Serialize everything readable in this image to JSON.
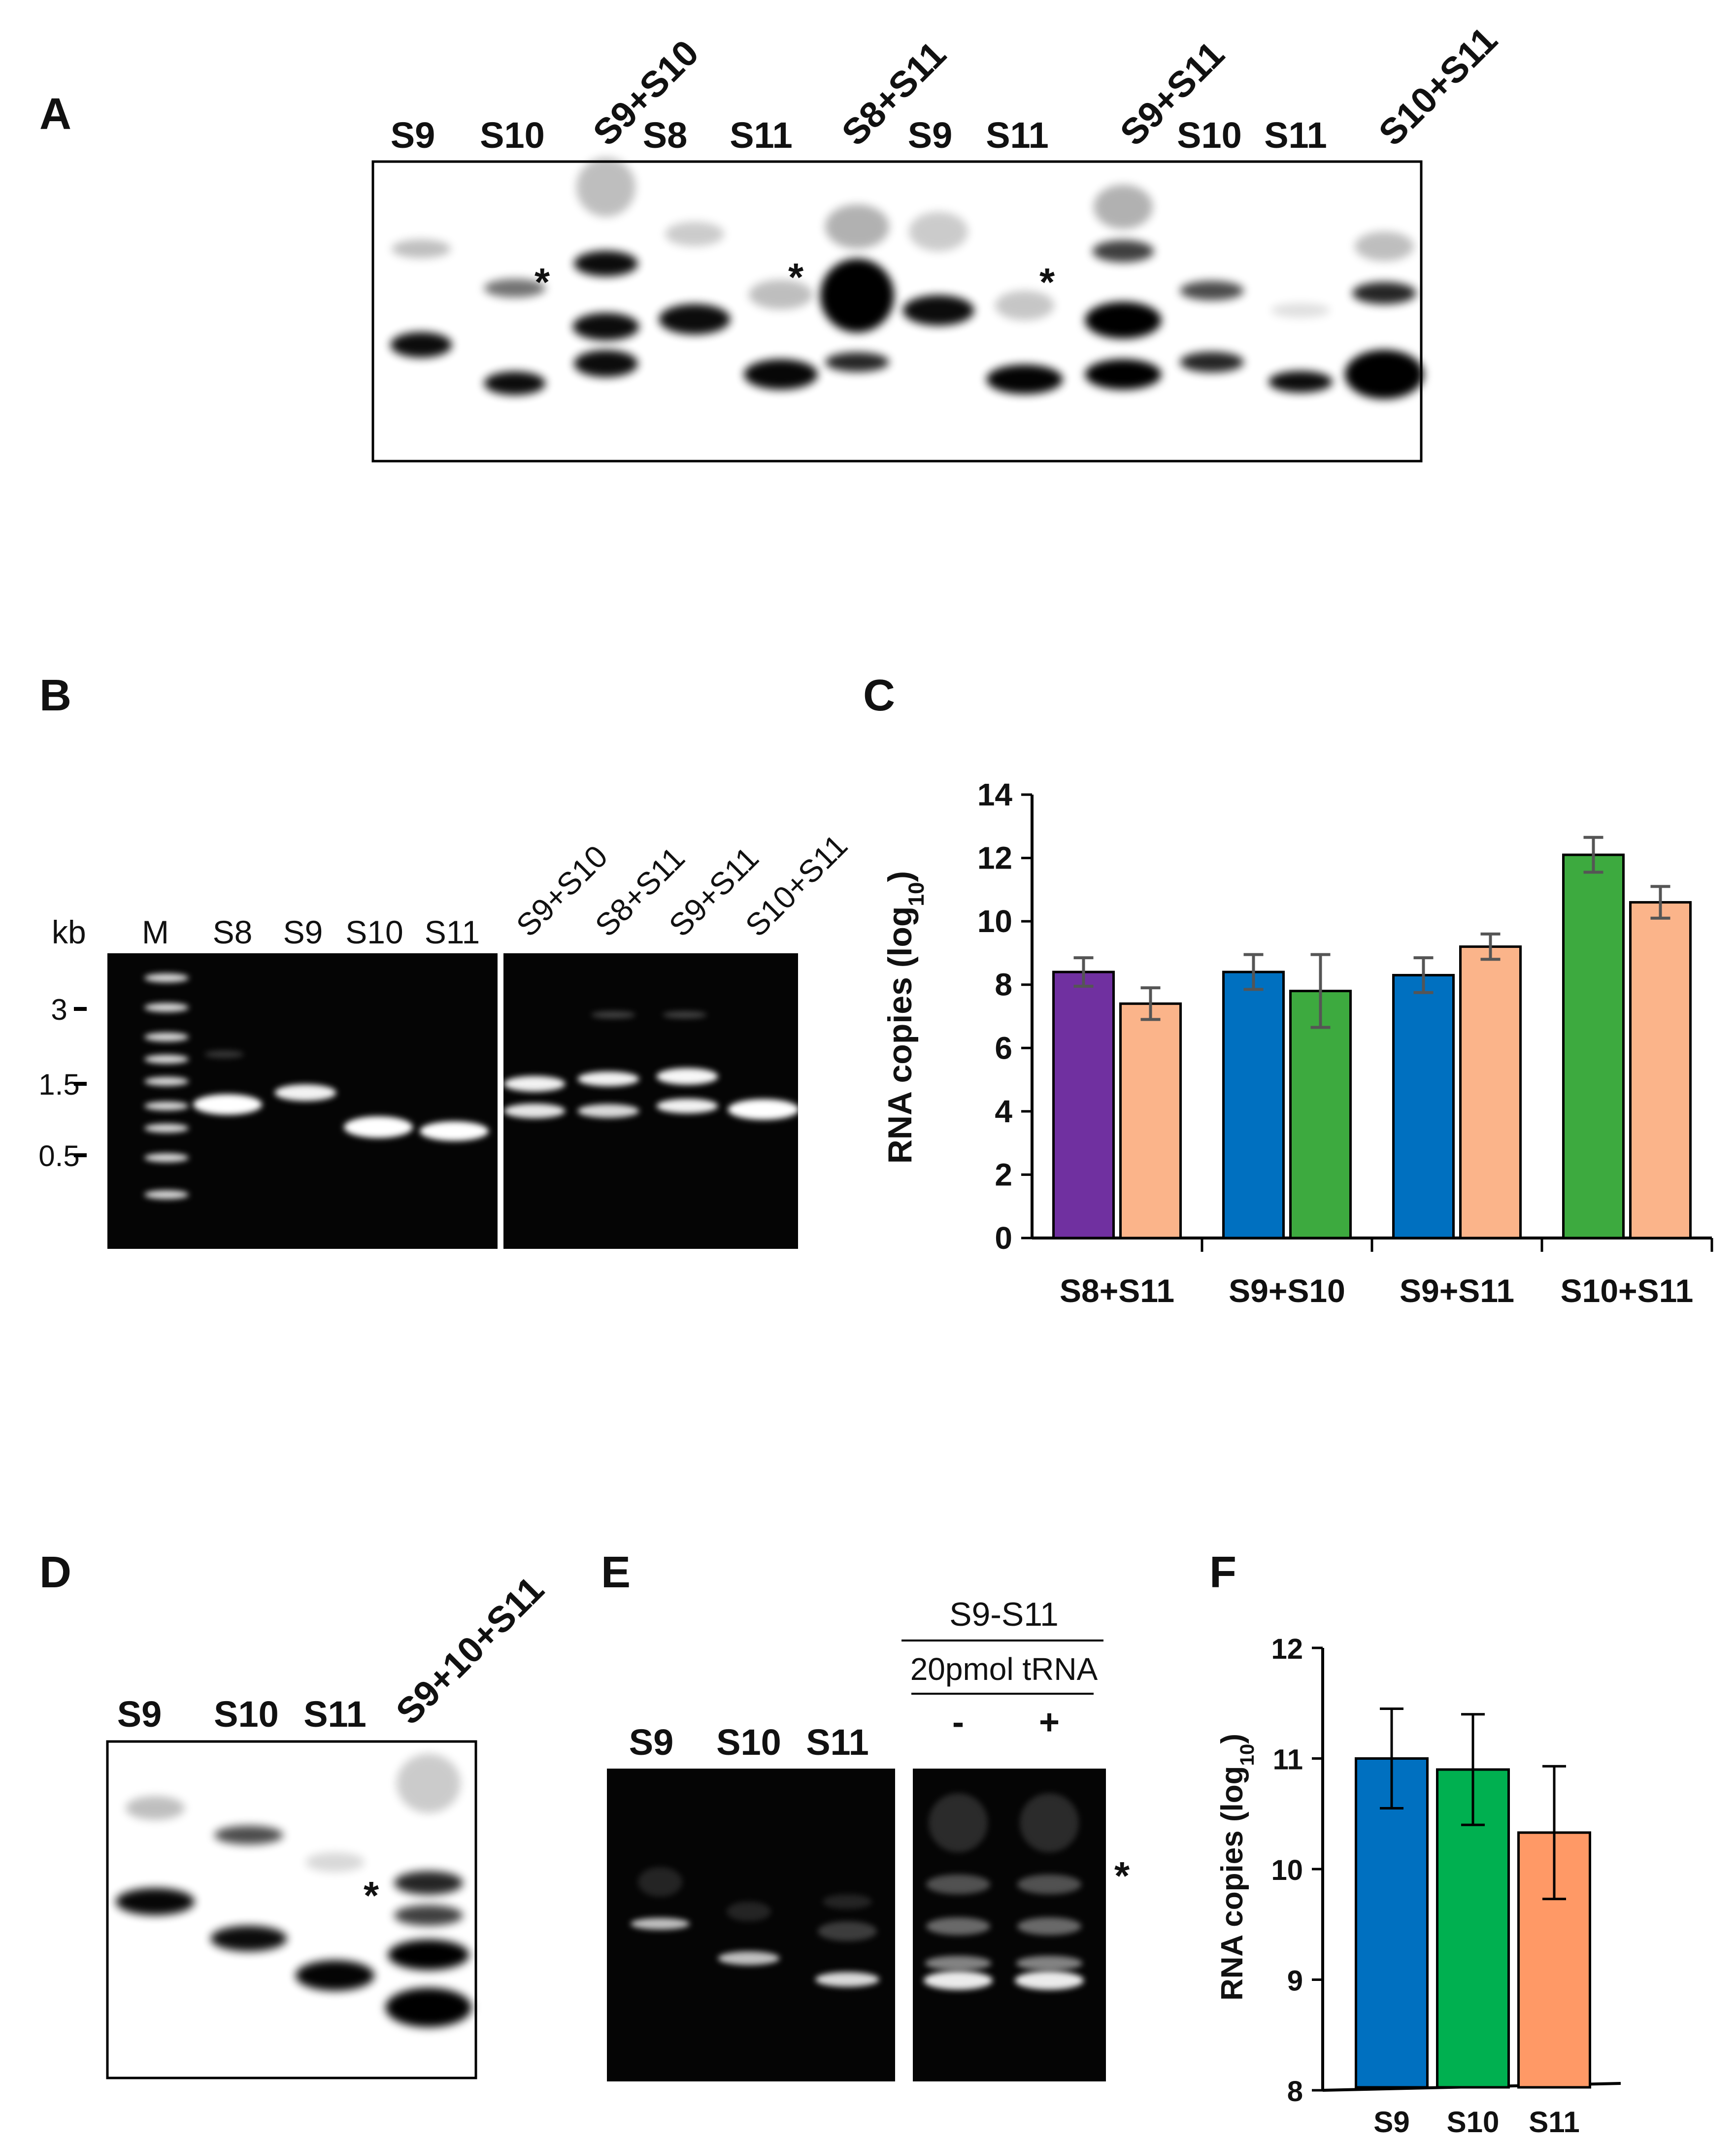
{
  "panels": {
    "A": {
      "letter": "A",
      "lanes": [
        "S9",
        "S10",
        "S9+S10",
        "S8",
        "S11",
        "S8+S11",
        "S9",
        "S11",
        "S9+S11",
        "S10",
        "S11",
        "S10+S11"
      ],
      "star": "*"
    },
    "B": {
      "letter": "B",
      "kb_label": "kb",
      "marker_label": "M",
      "lanes_left": [
        "S8",
        "S9",
        "S10",
        "S11"
      ],
      "lanes_right": [
        "S9+S10",
        "S8+S11",
        "S9+S11",
        "S10+S11"
      ],
      "ladder": [
        "3",
        "1.5",
        "0.5"
      ]
    },
    "C": {
      "letter": "C"
    },
    "D": {
      "letter": "D",
      "lanes": [
        "S9",
        "S10",
        "S11",
        "S9+10+S11"
      ],
      "star": "*"
    },
    "E": {
      "letter": "E",
      "lanes": [
        "S9",
        "S10",
        "S11"
      ],
      "header": "S9-S11",
      "subheader": "20pmol tRNA",
      "signs": [
        "-",
        "+"
      ],
      "star": "*"
    },
    "F": {
      "letter": "F"
    }
  },
  "chart_data": [
    {
      "id": "C",
      "type": "bar",
      "ylabel_main": "RNA copies (log",
      "ylabel_sub": "10",
      "ylabel_end": ")",
      "ylim": [
        0,
        14
      ],
      "yticks": [
        "0",
        "2",
        "4",
        "6",
        "8",
        "10",
        "12",
        "14"
      ],
      "categories": [
        "S8+S11",
        "S9+S10",
        "S9+S11",
        "S10+S11"
      ],
      "groups": [
        {
          "category": "S8+S11",
          "bars": [
            {
              "value": 8.4,
              "err": 0.45,
              "color": "#7030A0"
            },
            {
              "value": 7.4,
              "err": 0.5,
              "color": "#FBB48A"
            }
          ]
        },
        {
          "category": "S9+S10",
          "bars": [
            {
              "value": 8.4,
              "err": 0.55,
              "color": "#0070C0"
            },
            {
              "value": 7.8,
              "err": 1.15,
              "color": "#3DAA3F"
            }
          ]
        },
        {
          "category": "S9+S11",
          "bars": [
            {
              "value": 8.3,
              "err": 0.55,
              "color": "#0070C0"
            },
            {
              "value": 9.2,
              "err": 0.4,
              "color": "#FBB48A"
            }
          ]
        },
        {
          "category": "S10+S11",
          "bars": [
            {
              "value": 12.1,
              "err": 0.55,
              "color": "#3DAA3F"
            },
            {
              "value": 10.6,
              "err": 0.5,
              "color": "#FBB48A"
            }
          ]
        }
      ]
    },
    {
      "id": "F",
      "type": "bar",
      "ylabel_main": "RNA copies (log",
      "ylabel_sub": "10",
      "ylabel_end": ")",
      "ylim": [
        8,
        12
      ],
      "yticks": [
        "8",
        "9",
        "10",
        "11",
        "12"
      ],
      "categories": [
        "S9",
        "S10",
        "S11"
      ],
      "bars": [
        {
          "category": "S9",
          "value": 11.0,
          "err": 0.45,
          "color": "#0070C0"
        },
        {
          "category": "S10",
          "value": 10.9,
          "err": 0.5,
          "color": "#00B050"
        },
        {
          "category": "S11",
          "value": 10.33,
          "err": 0.6,
          "color": "#FF9966"
        }
      ]
    }
  ]
}
